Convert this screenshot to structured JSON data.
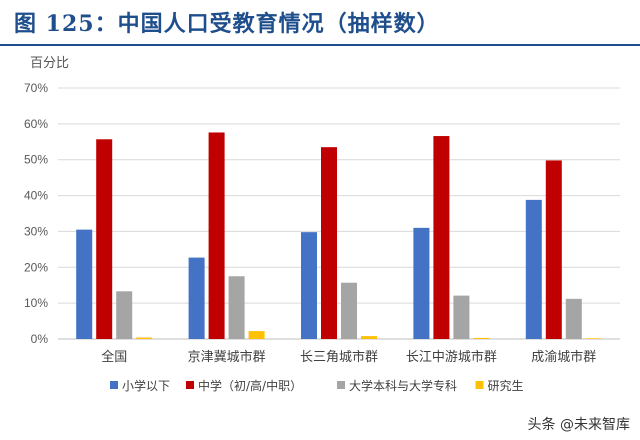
{
  "figure_title": "图 125：中国人口受教育情况（抽样数）",
  "watermark": "头条 @未来智库",
  "colors": {
    "title": "#1f4e8c",
    "series": [
      "#4472c4",
      "#c00000",
      "#a5a5a5",
      "#ffc000"
    ],
    "grid": "#d9d9d9",
    "tick_text": "#595959"
  },
  "chart_data": {
    "type": "bar",
    "title": "",
    "ylabel": "百分比",
    "xlabel": "",
    "ylim": [
      0,
      70
    ],
    "yticks": [
      0,
      10,
      20,
      30,
      40,
      50,
      60,
      70
    ],
    "ytick_labels": [
      "0%",
      "10%",
      "20%",
      "30%",
      "40%",
      "50%",
      "60%",
      "70%"
    ],
    "grid": true,
    "legend_position": "bottom",
    "categories": [
      "全国",
      "京津冀城市群",
      "长三角城市群",
      "长江中游城市群",
      "成渝城市群"
    ],
    "series": [
      {
        "name": "小学以下",
        "values": [
          30.5,
          22.7,
          29.8,
          31.0,
          38.8
        ]
      },
      {
        "name": "中学（初/高/中职）",
        "values": [
          55.7,
          57.6,
          53.5,
          56.6,
          49.8
        ]
      },
      {
        "name": "大学本科与大学专科",
        "values": [
          13.3,
          17.5,
          15.7,
          12.1,
          11.2
        ]
      },
      {
        "name": "研究生",
        "values": [
          0.4,
          2.2,
          0.8,
          0.3,
          0.2
        ]
      }
    ]
  }
}
